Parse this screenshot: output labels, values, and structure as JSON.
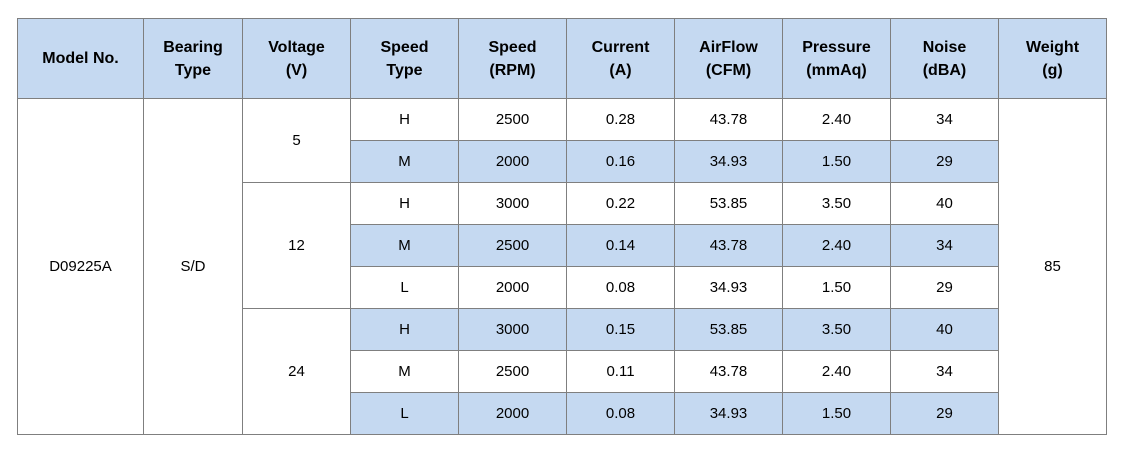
{
  "table": {
    "header": [
      [
        "Model No."
      ],
      [
        "Bearing",
        "Type"
      ],
      [
        "Voltage",
        "(V)"
      ],
      [
        "Speed",
        "Type"
      ],
      [
        "Speed",
        "(RPM)"
      ],
      [
        "Current",
        "(A)"
      ],
      [
        "AirFlow",
        "(CFM)"
      ],
      [
        "Pressure",
        "(mmAq)"
      ],
      [
        "Noise",
        "(dBA)"
      ],
      [
        "Weight",
        "(g)"
      ]
    ],
    "model": "D09225A",
    "bearing": "S/D",
    "weight": "85",
    "groups": [
      {
        "voltage": "5",
        "rows": [
          [
            "H",
            "2500",
            "0.28",
            "43.78",
            "2.40",
            "34"
          ],
          [
            "M",
            "2000",
            "0.16",
            "34.93",
            "1.50",
            "29"
          ]
        ]
      },
      {
        "voltage": "12",
        "rows": [
          [
            "H",
            "3000",
            "0.22",
            "53.85",
            "3.50",
            "40"
          ],
          [
            "M",
            "2500",
            "0.14",
            "43.78",
            "2.40",
            "34"
          ],
          [
            "L",
            "2000",
            "0.08",
            "34.93",
            "1.50",
            "29"
          ]
        ]
      },
      {
        "voltage": "24",
        "rows": [
          [
            "H",
            "3000",
            "0.15",
            "53.85",
            "3.50",
            "40"
          ],
          [
            "M",
            "2500",
            "0.11",
            "43.78",
            "2.40",
            "34"
          ],
          [
            "L",
            "2000",
            "0.08",
            "34.93",
            "1.50",
            "29"
          ]
        ]
      }
    ]
  }
}
